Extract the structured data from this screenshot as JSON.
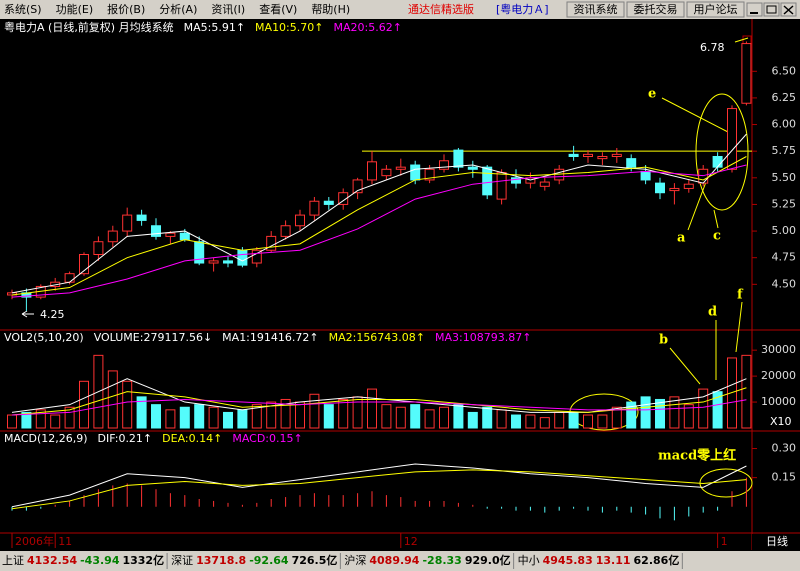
{
  "menu": [
    "系统(S)",
    "功能(E)",
    "报价(B)",
    "分析(A)",
    "资讯(I)",
    "查看(V)",
    "帮助(H)"
  ],
  "app_title": "通达信精选版",
  "stock_tag": "[粤电力Ａ]",
  "buttons": [
    "资讯系统",
    "委托交易",
    "用户论坛"
  ],
  "period": "日线",
  "status": [
    {
      "label": "上证",
      "value": "4132.54",
      "change": "-43.94",
      "amount": "1332亿"
    },
    {
      "label": "深证",
      "value": "13718.8",
      "change": "-92.64",
      "amount": "726.5亿"
    },
    {
      "label": "沪深",
      "value": "4089.94",
      "change": "-28.33",
      "amount": "929.0亿"
    },
    {
      "label": "中小",
      "value": "4945.83",
      "change": "13.11",
      "amount": "62.86亿"
    }
  ],
  "chart_data": [
    {
      "type": "candlestick",
      "title": "粤电力A (日线,前复权) 月均线系统",
      "categories": [
        "2006年",
        null,
        null,
        "11",
        null,
        null,
        null,
        null,
        null,
        null,
        null,
        null,
        null,
        null,
        null,
        null,
        null,
        null,
        null,
        null,
        null,
        null,
        null,
        null,
        null,
        null,
        null,
        "12",
        null,
        null,
        null,
        null,
        null,
        null,
        null,
        null,
        null,
        null,
        null,
        null,
        null,
        null,
        null,
        null,
        null,
        null,
        null,
        null,
        null,
        "1",
        null,
        null
      ],
      "open": [
        4.4,
        4.42,
        4.38,
        4.48,
        4.52,
        4.6,
        4.78,
        4.9,
        5.0,
        5.15,
        5.05,
        4.95,
        4.98,
        4.9,
        4.7,
        4.72,
        4.82,
        4.7,
        4.82,
        4.95,
        5.05,
        5.15,
        5.28,
        5.25,
        5.36,
        5.48,
        5.52,
        5.58,
        5.62,
        5.48,
        5.58,
        5.76,
        5.6,
        5.6,
        5.3,
        5.5,
        5.45,
        5.42,
        5.48,
        5.72,
        5.7,
        5.68,
        5.7,
        5.68,
        5.56,
        5.45,
        5.38,
        5.4,
        5.45,
        5.7,
        5.58,
        6.2
      ],
      "high": [
        4.45,
        4.46,
        4.5,
        4.56,
        4.62,
        4.8,
        4.95,
        5.05,
        5.22,
        5.2,
        5.12,
        5.0,
        5.02,
        4.95,
        4.75,
        4.76,
        4.85,
        4.85,
        5.0,
        5.1,
        5.2,
        5.32,
        5.32,
        5.4,
        5.5,
        5.75,
        5.62,
        5.68,
        5.66,
        5.62,
        5.72,
        5.78,
        5.66,
        5.62,
        5.58,
        5.58,
        5.55,
        5.5,
        5.62,
        5.8,
        5.76,
        5.74,
        5.78,
        5.72,
        5.62,
        5.5,
        5.45,
        5.48,
        5.62,
        5.74,
        6.18,
        6.78
      ],
      "low": [
        4.36,
        4.25,
        4.36,
        4.44,
        4.5,
        4.58,
        4.72,
        4.85,
        4.95,
        5.05,
        4.92,
        4.88,
        4.9,
        4.68,
        4.62,
        4.66,
        4.66,
        4.66,
        4.8,
        4.92,
        5.0,
        5.1,
        5.2,
        5.2,
        5.3,
        5.44,
        5.48,
        5.52,
        5.44,
        5.45,
        5.55,
        5.56,
        5.5,
        5.3,
        5.25,
        5.4,
        5.4,
        5.38,
        5.44,
        5.66,
        5.64,
        5.62,
        5.64,
        5.56,
        5.44,
        5.3,
        5.25,
        5.36,
        5.42,
        5.56,
        5.55,
        6.18
      ],
      "close": [
        4.42,
        4.38,
        4.48,
        4.52,
        4.6,
        4.78,
        4.9,
        5.0,
        5.15,
        5.1,
        4.95,
        4.98,
        4.92,
        4.7,
        4.72,
        4.7,
        4.68,
        4.82,
        4.95,
        5.05,
        5.15,
        5.28,
        5.25,
        5.36,
        5.48,
        5.65,
        5.58,
        5.6,
        5.48,
        5.58,
        5.66,
        5.6,
        5.58,
        5.34,
        5.55,
        5.45,
        5.5,
        5.46,
        5.58,
        5.7,
        5.72,
        5.7,
        5.72,
        5.6,
        5.48,
        5.36,
        5.4,
        5.44,
        5.58,
        5.6,
        6.15,
        6.76
      ],
      "up_color": "#ff3232",
      "down_color": "#54fcfc",
      "series": [
        {
          "name": "MA5:5.91↑",
          "color": "#ffffff",
          "x": [
            0,
            4,
            8,
            12,
            16,
            20,
            24,
            28,
            32,
            36,
            40,
            44,
            48,
            51
          ],
          "values": [
            4.42,
            4.52,
            4.95,
            5.0,
            4.72,
            5.0,
            5.38,
            5.58,
            5.62,
            5.48,
            5.62,
            5.58,
            5.45,
            5.91
          ]
        },
        {
          "name": "MA10:5.70↑",
          "color": "#ffff00",
          "x": [
            0,
            4,
            8,
            12,
            16,
            20,
            24,
            28,
            32,
            36,
            40,
            44,
            48,
            51
          ],
          "values": [
            4.4,
            4.47,
            4.75,
            4.92,
            4.82,
            4.88,
            5.2,
            5.48,
            5.55,
            5.52,
            5.55,
            5.6,
            5.48,
            5.7
          ]
        },
        {
          "name": "MA20:5.62↑",
          "color": "#ff00ff",
          "x": [
            0,
            4,
            8,
            12,
            16,
            20,
            24,
            28,
            32,
            36,
            40,
            44,
            48,
            51
          ],
          "values": [
            4.38,
            4.42,
            4.55,
            4.72,
            4.78,
            4.82,
            5.02,
            5.3,
            5.44,
            5.5,
            5.52,
            5.56,
            5.52,
            5.62
          ]
        }
      ],
      "reference_line": 5.75,
      "reference_color": "#ffff00",
      "ylim": [
        4.09,
        6.85
      ],
      "yticks": [
        {
          "value": 4.5,
          "label": "4.50"
        },
        4.75,
        {
          "value": 5,
          "label": "5.00"
        },
        5.25,
        {
          "value": 5.5,
          "label": "5.50"
        },
        5.75,
        {
          "value": 6,
          "label": "6.00"
        },
        6.25,
        {
          "value": 6.5,
          "label": "6.50"
        }
      ],
      "annotations": [
        "6.78",
        "4.25",
        "e",
        "a",
        "c"
      ]
    },
    {
      "type": "volume",
      "title": "VOL2(5,10,20)",
      "bar_label": "VOLUME:279117.56↓",
      "bar_label_color": "#ffffff",
      "values": [
        5000,
        6000,
        7000,
        5000,
        8000,
        18000,
        28000,
        22000,
        18000,
        12000,
        9000,
        7000,
        8000,
        9000,
        8000,
        6000,
        7000,
        9000,
        10000,
        11000,
        10000,
        13000,
        9000,
        11000,
        12000,
        15000,
        9000,
        8000,
        9000,
        7000,
        8000,
        9000,
        6000,
        8000,
        7000,
        5000,
        5000,
        4000,
        6000,
        6000,
        5000,
        5000,
        8000,
        10000,
        12000,
        11000,
        12000,
        9000,
        15000,
        14000,
        27000,
        28000
      ],
      "series": [
        {
          "name": "MA1:191416.72↑",
          "color": "#ffffff",
          "x": [
            0,
            4,
            8,
            12,
            16,
            20,
            24,
            28,
            32,
            36,
            40,
            44,
            48,
            51
          ],
          "values": [
            6000,
            9000,
            19000,
            10000,
            7000,
            10000,
            12000,
            10000,
            8000,
            6000,
            6000,
            9000,
            12000,
            19000
          ]
        },
        {
          "name": "MA2:156743.08↑",
          "color": "#ffff00",
          "x": [
            0,
            4,
            8,
            12,
            16,
            20,
            24,
            28,
            32,
            36,
            40,
            44,
            48,
            51
          ],
          "values": [
            5000,
            7000,
            14000,
            12000,
            8000,
            9000,
            11000,
            11000,
            9000,
            7000,
            6000,
            8000,
            10000,
            15500
          ]
        },
        {
          "name": "MA3:108793.87↑",
          "color": "#ff00ff",
          "x": [
            0,
            4,
            8,
            12,
            16,
            20,
            24,
            28,
            32,
            36,
            40,
            44,
            48,
            51
          ],
          "values": [
            5000,
            6000,
            10000,
            11000,
            10000,
            9000,
            10000,
            10000,
            9000,
            8000,
            7000,
            7000,
            8000,
            10900
          ]
        }
      ],
      "ylim": [
        0,
        37000
      ],
      "yticks": [
        10000,
        20000,
        30000
      ],
      "y_unit": "X10",
      "annotations": [
        "b",
        "d",
        "f"
      ]
    },
    {
      "type": "macd",
      "title": "MACD(12,26,9)",
      "bar_label": "MACD:0.15↑",
      "bar_label_color": "#ff00ff",
      "values": [
        -0.02,
        -0.02,
        -0.01,
        0.01,
        0.03,
        0.06,
        0.09,
        0.11,
        0.12,
        0.11,
        0.09,
        0.07,
        0.06,
        0.04,
        0.03,
        0.02,
        0.01,
        0.02,
        0.04,
        0.05,
        0.06,
        0.07,
        0.06,
        0.06,
        0.07,
        0.08,
        0.06,
        0.05,
        0.03,
        0.03,
        0.03,
        0.02,
        0.01,
        -0.01,
        -0.01,
        -0.02,
        -0.02,
        -0.03,
        -0.02,
        -0.01,
        -0.02,
        -0.03,
        -0.02,
        -0.03,
        -0.04,
        -0.06,
        -0.07,
        -0.05,
        -0.03,
        -0.02,
        0.08,
        0.15
      ],
      "series": [
        {
          "name": "DIF:0.21↑",
          "color": "#ffffff",
          "x": [
            0,
            4,
            8,
            12,
            16,
            20,
            24,
            28,
            32,
            36,
            40,
            44,
            48,
            51
          ],
          "values": [
            0.0,
            0.06,
            0.17,
            0.15,
            0.1,
            0.14,
            0.18,
            0.22,
            0.2,
            0.17,
            0.15,
            0.12,
            0.1,
            0.21
          ]
        },
        {
          "name": "DEA:0.14↑",
          "color": "#ffff00",
          "x": [
            0,
            4,
            8,
            12,
            16,
            20,
            24,
            28,
            32,
            36,
            40,
            44,
            48,
            51
          ],
          "values": [
            -0.01,
            0.03,
            0.11,
            0.13,
            0.11,
            0.12,
            0.15,
            0.18,
            0.19,
            0.18,
            0.16,
            0.14,
            0.12,
            0.14
          ]
        }
      ],
      "ylim": [
        -0.13,
        0.38
      ],
      "yticks": [
        0.15,
        {
          "value": 0.3,
          "label": "0.30"
        }
      ],
      "annotations": [
        "macd零上红"
      ]
    }
  ]
}
